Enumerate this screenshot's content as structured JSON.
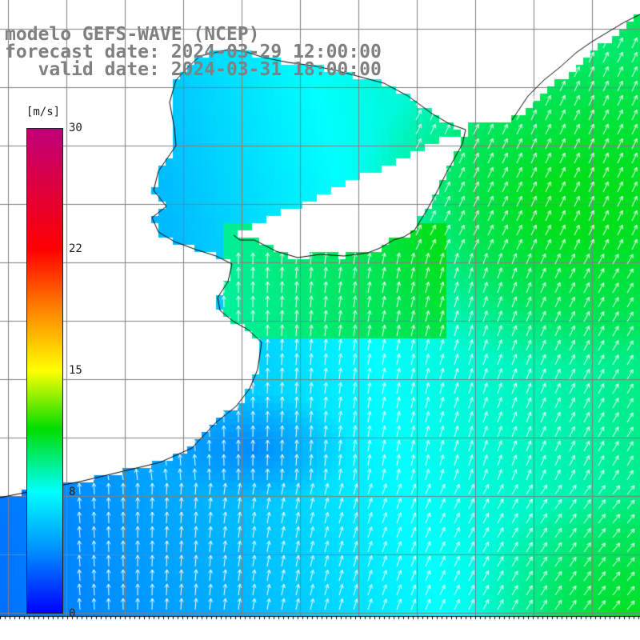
{
  "title": {
    "line1": "modelo GEFS-WAVE (NCEP)",
    "line2": "forecast date: 2024-03-29 12:00:00",
    "line3": "   valid date: 2024-03-31 18:00:00"
  },
  "colorbar": {
    "unit": "[m/s]",
    "ticks": [
      {
        "label": "30",
        "value": 30
      },
      {
        "label": "22",
        "value": 22
      },
      {
        "label": "15",
        "value": 15
      },
      {
        "label": "8",
        "value": 8
      },
      {
        "label": "0",
        "value": 0
      }
    ],
    "colors": [
      "#0000ff",
      "#0090ff",
      "#00ffff",
      "#00dd00",
      "#ffff00",
      "#ff8000",
      "#ff0000",
      "#c0007a"
    ]
  },
  "map": {
    "field": "wind speed with direction arrows",
    "arrow_color": "#ffffff",
    "land_color": "#ffffff",
    "grid_color": "#808080",
    "coast_color": "#000000"
  }
}
